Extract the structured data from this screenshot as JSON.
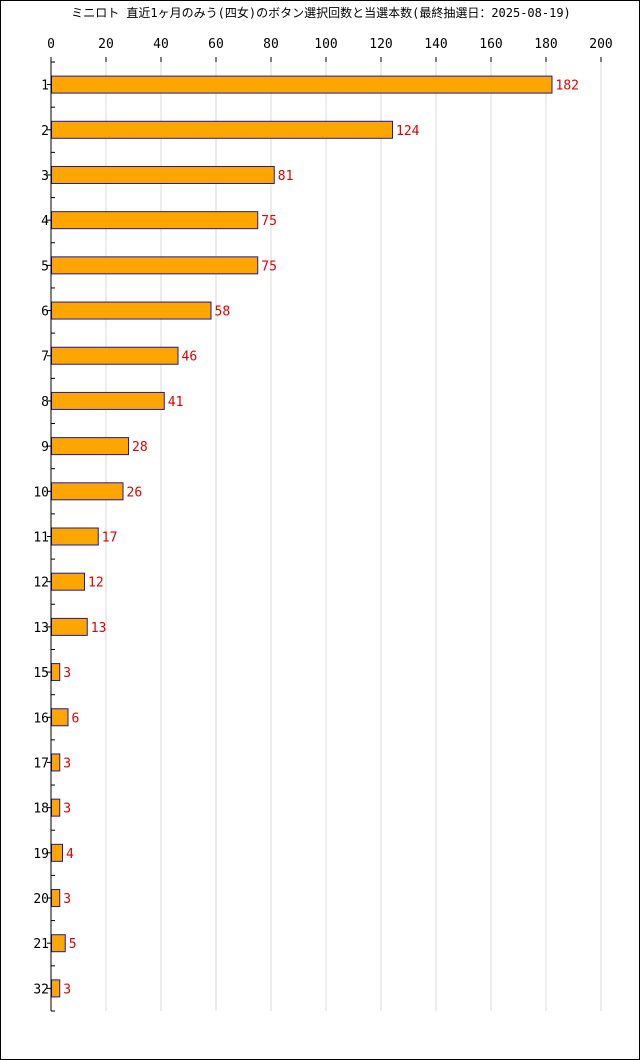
{
  "chart_data": {
    "type": "bar",
    "orientation": "horizontal",
    "title": "ミニロト 直近1ヶ月のみう(四女)のボタン選択回数と当選本数(最終抽選日：2025-08-19)",
    "categories": [
      "1",
      "2",
      "3",
      "4",
      "5",
      "6",
      "7",
      "8",
      "9",
      "10",
      "11",
      "12",
      "13",
      "15",
      "16",
      "17",
      "18",
      "19",
      "20",
      "21",
      "32"
    ],
    "values": [
      182,
      124,
      81,
      75,
      75,
      58,
      46,
      41,
      28,
      26,
      17,
      12,
      13,
      3,
      6,
      3,
      3,
      4,
      3,
      5,
      3
    ],
    "xlim": [
      0,
      200
    ],
    "xticks": [
      0,
      20,
      40,
      60,
      80,
      100,
      120,
      140,
      160,
      180,
      200
    ],
    "grid": true,
    "bar_color": "#ffa500",
    "bar_edge_color": "#1a1aa8",
    "value_label_color": "#e00000",
    "grid_color": "#d8d8d8"
  }
}
